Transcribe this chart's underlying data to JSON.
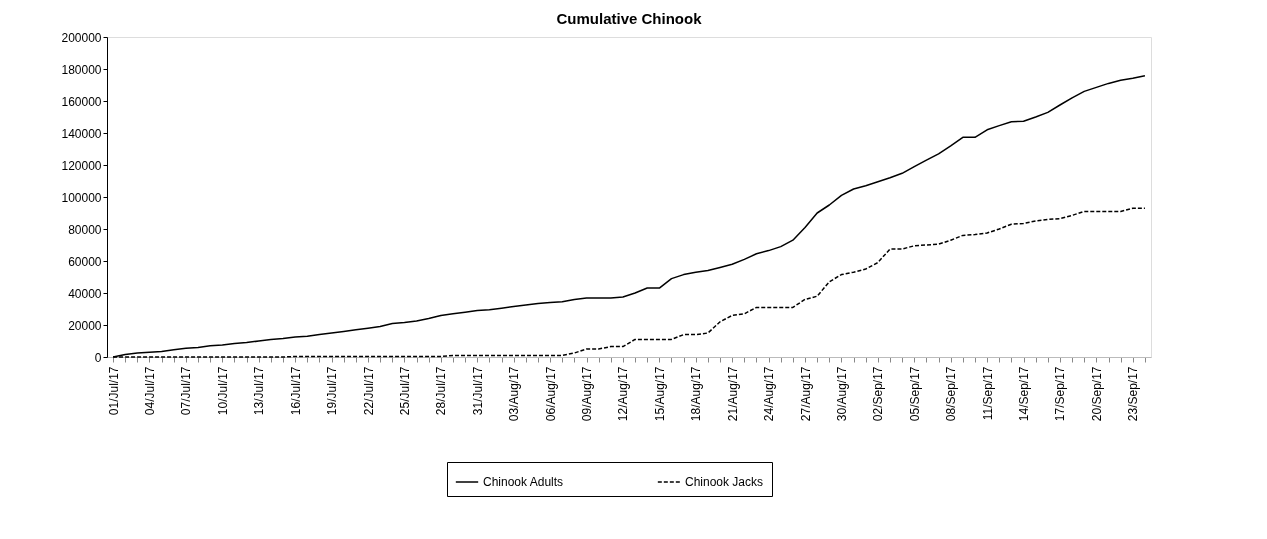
{
  "chart_data": {
    "type": "line",
    "title": "Cumulative Chinook",
    "categories": [
      "01/Jul/17",
      null,
      null,
      "04/Jul/17",
      null,
      null,
      "07/Jul/17",
      null,
      null,
      "10/Jul/17",
      null,
      null,
      "13/Jul/17",
      null,
      null,
      "16/Jul/17",
      null,
      null,
      "19/Jul/17",
      null,
      null,
      "22/Jul/17",
      null,
      null,
      "25/Jul/17",
      null,
      null,
      "28/Jul/17",
      null,
      null,
      "31/Jul/17",
      null,
      null,
      "03/Aug/17",
      null,
      null,
      "06/Aug/17",
      null,
      null,
      "09/Aug/17",
      null,
      null,
      "12/Aug/17",
      null,
      null,
      "15/Aug/17",
      null,
      null,
      "18/Aug/17",
      null,
      null,
      "21/Aug/17",
      null,
      null,
      "24/Aug/17",
      null,
      null,
      "27/Aug/17",
      null,
      null,
      "30/Aug/17",
      null,
      null,
      "02/Sep/17",
      null,
      null,
      "05/Sep/17",
      null,
      null,
      "08/Sep/17",
      null,
      null,
      "11/Sep/17",
      null,
      null,
      "14/Sep/17",
      null,
      null,
      "17/Sep/17",
      null,
      null,
      "20/Sep/17",
      null,
      null,
      "23/Sep/17",
      null
    ],
    "series": [
      {
        "name": "Chinook Adults",
        "color": "#000000",
        "line_style": "solid",
        "values": [
          0,
          1500,
          2500,
          3000,
          3500,
          4500,
          5500,
          6000,
          7000,
          7500,
          8500,
          9000,
          10000,
          11000,
          11500,
          12500,
          13000,
          14000,
          15000,
          16000,
          17000,
          18000,
          19000,
          21000,
          21500,
          22500,
          24000,
          26000,
          27000,
          28000,
          29000,
          29600,
          30500,
          31500,
          32500,
          33500,
          34000,
          34600,
          36000,
          36900,
          36900,
          36900,
          37500,
          40000,
          43100,
          43100,
          49000,
          51500,
          52900,
          54000,
          56000,
          58000,
          61000,
          64500,
          66500,
          69000,
          73000,
          81000,
          90000,
          95000,
          101000,
          105000,
          107000,
          109500,
          112000,
          114800,
          119000,
          123000,
          127000,
          132000,
          137300,
          137300,
          142000,
          144600,
          147000,
          147300,
          150000,
          152900,
          157500,
          162000,
          166000,
          168500,
          171000,
          173000,
          174200,
          175800
        ]
      },
      {
        "name": "Chinook Jacks",
        "color": "#000000",
        "line_style": "dashed",
        "values": [
          0,
          0,
          0,
          0,
          0,
          0,
          0,
          0,
          0,
          0,
          0,
          0,
          0,
          0,
          0,
          300,
          300,
          300,
          300,
          300,
          300,
          300,
          300,
          300,
          300,
          300,
          300,
          300,
          1000,
          1000,
          1000,
          1000,
          1000,
          1000,
          1000,
          1000,
          1000,
          1000,
          2500,
          5000,
          5000,
          6500,
          6500,
          11000,
          11000,
          11000,
          11000,
          14000,
          14000,
          15000,
          22000,
          26000,
          27000,
          31000,
          31000,
          31000,
          31000,
          36000,
          38000,
          47000,
          51500,
          53000,
          55000,
          59000,
          67500,
          67500,
          69500,
          70000,
          70500,
          73000,
          76000,
          76500,
          77500,
          80000,
          83000,
          83500,
          85000,
          86000,
          86500,
          88500,
          91000,
          91000,
          91000,
          91000,
          93000,
          93000
        ]
      }
    ],
    "ylim": [
      0,
      200000
    ],
    "yticks": [
      0,
      20000,
      40000,
      60000,
      80000,
      100000,
      120000,
      140000,
      160000,
      180000,
      200000
    ],
    "grid": false,
    "legend": "bottom",
    "marker": "none"
  }
}
